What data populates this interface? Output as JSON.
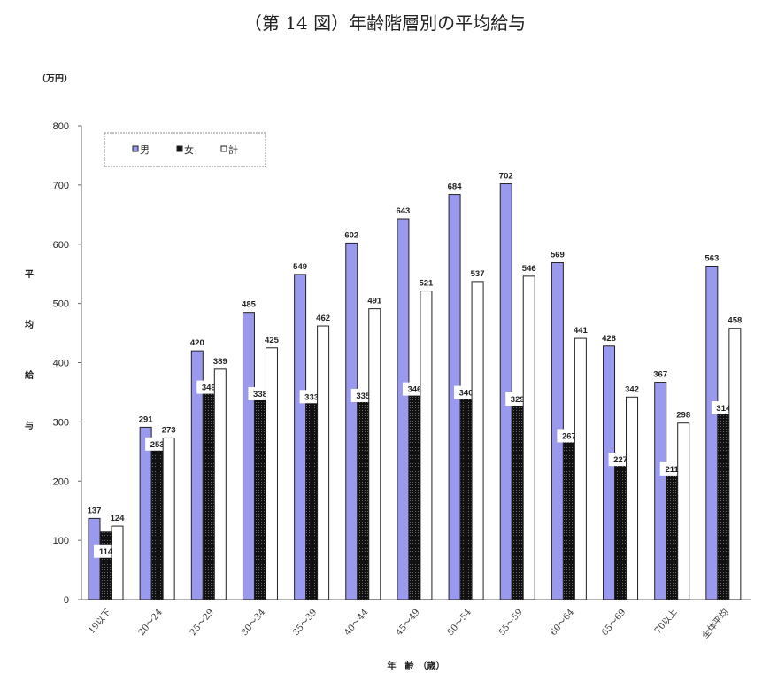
{
  "chart_data": {
    "type": "bar",
    "title": "（第 14 図）年齢階層別の平均給与",
    "unit": "（万円）",
    "ylabel": "平均給与",
    "xlabel": "年　齢　（歳）",
    "ylim": [
      0,
      800
    ],
    "yticks": [
      0,
      100,
      200,
      300,
      400,
      500,
      600,
      700,
      800
    ],
    "grid": false,
    "legend_position": "top-left",
    "categories": [
      "19以下",
      "20～24",
      "25～29",
      "30～34",
      "35～39",
      "40～44",
      "45～49",
      "50～54",
      "55～59",
      "60～64",
      "65～69",
      "70以上",
      "全体平均"
    ],
    "series": [
      {
        "name": "男",
        "color": "#9999ee",
        "values": [
          137,
          291,
          420,
          485,
          549,
          602,
          643,
          684,
          702,
          569,
          428,
          367,
          563
        ]
      },
      {
        "name": "女",
        "color": "#111111",
        "values": [
          114,
          253,
          349,
          338,
          333,
          335,
          346,
          340,
          329,
          267,
          227,
          211,
          314
        ]
      },
      {
        "name": "計",
        "color": "#ffffff",
        "values": [
          124,
          273,
          389,
          425,
          462,
          491,
          521,
          537,
          546,
          441,
          342,
          298,
          458
        ]
      }
    ]
  }
}
